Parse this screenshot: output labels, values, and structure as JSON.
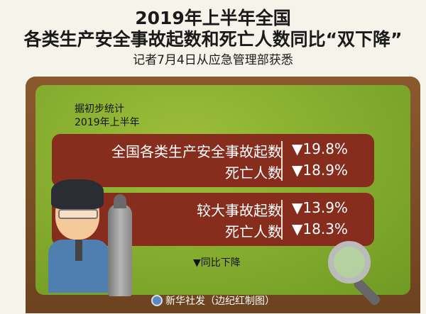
{
  "header": {
    "title_line1": "2019年上半年全国",
    "title_line2": "各类生产安全事故起数和死亡人数同比“双下降”",
    "subtitle": "记者7月4日从应急管理部获悉"
  },
  "board": {
    "intro_line1": "据初步统计",
    "intro_line2": "2019年上半年",
    "groups": [
      {
        "rows": [
          {
            "label": "全国各类生产安全事故起数",
            "value": "▼19.8%"
          },
          {
            "label": "死亡人数",
            "value": "▼18.9%"
          }
        ]
      },
      {
        "rows": [
          {
            "label": "较大事故起数",
            "value": "▼13.9%"
          },
          {
            "label": "死亡人数",
            "value": "▼18.3%"
          }
        ]
      }
    ],
    "legend": "▼同比下降"
  },
  "footer": {
    "credit": "新华社发（边纪红制图）"
  },
  "colors": {
    "board_green": "#8bb030",
    "box_red": "#862d1e",
    "frame_brown": "#7a4c25"
  }
}
